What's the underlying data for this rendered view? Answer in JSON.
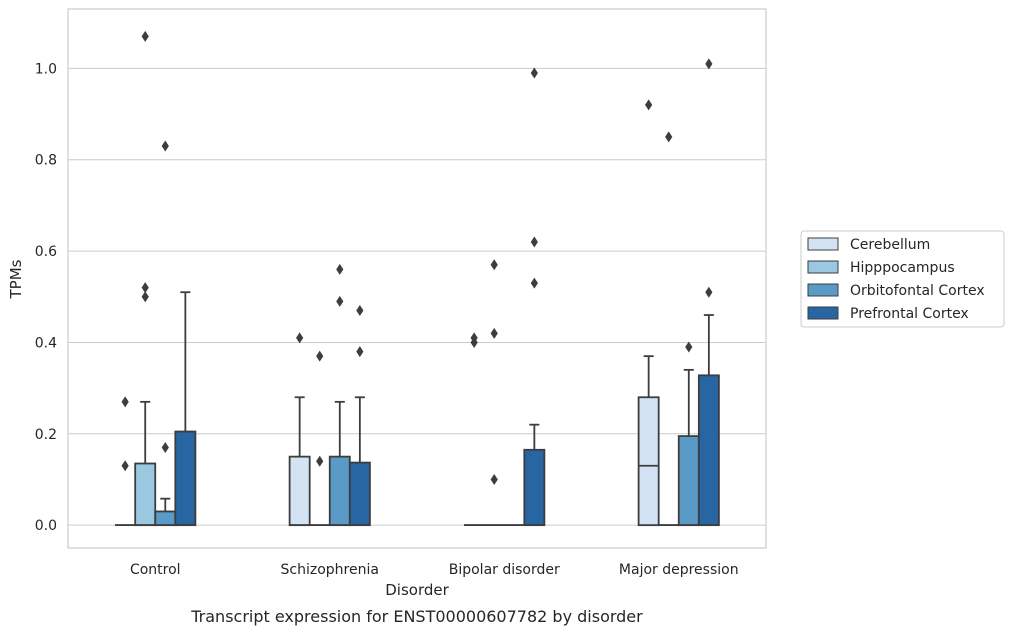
{
  "caption": "Transcript expression for ENST00000607782 by disorder",
  "chart_data": {
    "type": "box",
    "title": "",
    "xlabel": "Disorder",
    "ylabel": "TPMs",
    "ylim": [
      -0.05,
      1.13
    ],
    "yticks": [
      "0.0",
      "0.2",
      "0.4",
      "0.6",
      "0.8",
      "1.0"
    ],
    "grid": "horizontal",
    "legend_position": "right",
    "categories": [
      "Control",
      "Schizophrenia",
      "Bipolar disorder",
      "Major depression"
    ],
    "series": [
      {
        "name": "Cerebellum",
        "color": "#d3e3f3",
        "boxes": [
          {
            "q1": 0,
            "median": 0,
            "q3": 0,
            "whislo": 0,
            "whishi": 0,
            "fliers": [
              0.13,
              0.27
            ]
          },
          {
            "q1": 0,
            "median": 0,
            "q3": 0.15,
            "whislo": 0,
            "whishi": 0.28,
            "fliers": [
              0.41
            ]
          },
          {
            "q1": 0,
            "median": 0,
            "q3": 0,
            "whislo": 0,
            "whishi": 0,
            "fliers": [
              0.4,
              0.41
            ]
          },
          {
            "q1": 0,
            "median": 0.13,
            "q3": 0.28,
            "whislo": 0,
            "whishi": 0.37,
            "fliers": [
              0.92
            ]
          }
        ]
      },
      {
        "name": "Hipppocampus",
        "color": "#9ac8e0",
        "boxes": [
          {
            "q1": 0,
            "median": 0,
            "q3": 0.135,
            "whislo": 0,
            "whishi": 0.27,
            "fliers": [
              0.5,
              0.52,
              1.07
            ]
          },
          {
            "q1": 0,
            "median": 0,
            "q3": 0,
            "whislo": 0,
            "whishi": 0,
            "fliers": [
              0.14,
              0.37
            ]
          },
          {
            "q1": 0,
            "median": 0,
            "q3": 0,
            "whislo": 0,
            "whishi": 0,
            "fliers": [
              0.1,
              0.42,
              0.57
            ]
          },
          {
            "q1": 0,
            "median": 0,
            "q3": 0,
            "whislo": 0,
            "whishi": 0,
            "fliers": [
              0.85
            ]
          }
        ]
      },
      {
        "name": "Orbitofontal Cortex",
        "color": "#5a9ac6",
        "boxes": [
          {
            "q1": 0,
            "median": 0,
            "q3": 0.03,
            "whislo": 0,
            "whishi": 0.058,
            "fliers": [
              0.17,
              0.83
            ]
          },
          {
            "q1": 0,
            "median": 0,
            "q3": 0.15,
            "whislo": 0,
            "whishi": 0.27,
            "fliers": [
              0.49,
              0.56
            ]
          },
          {
            "q1": 0,
            "median": 0,
            "q3": 0,
            "whislo": 0,
            "whishi": 0,
            "fliers": []
          },
          {
            "q1": 0,
            "median": 0,
            "q3": 0.195,
            "whislo": 0,
            "whishi": 0.34,
            "fliers": [
              0.39
            ]
          }
        ]
      },
      {
        "name": "Prefrontal Cortex",
        "color": "#2765a3",
        "boxes": [
          {
            "q1": 0,
            "median": 0,
            "q3": 0.205,
            "whislo": 0,
            "whishi": 0.51,
            "fliers": []
          },
          {
            "q1": 0,
            "median": 0,
            "q3": 0.137,
            "whislo": 0,
            "whishi": 0.28,
            "fliers": [
              0.38,
              0.47
            ]
          },
          {
            "q1": 0,
            "median": 0,
            "q3": 0.165,
            "whislo": 0,
            "whishi": 0.22,
            "fliers": [
              0.53,
              0.62,
              0.99
            ]
          },
          {
            "q1": 0,
            "median": 0,
            "q3": 0.328,
            "whislo": 0,
            "whishi": 0.46,
            "fliers": [
              0.51,
              1.01
            ]
          }
        ]
      }
    ]
  },
  "colors": {
    "axes_edge": "#cccccc",
    "grid": "#cccccc",
    "box_edge": "#3d3d3d",
    "text": "#262626"
  }
}
